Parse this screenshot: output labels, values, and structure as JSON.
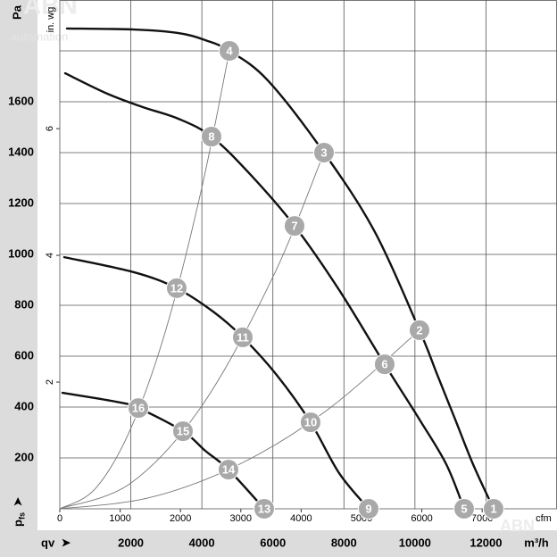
{
  "chart_data": {
    "type": "line",
    "y_label": "Pa",
    "y2_label": "in. wg",
    "x_label": "m³/h",
    "x2_label": "cfm",
    "x_symbol": "qv",
    "y_symbol_main": "p",
    "y_symbol_sub": "fs",
    "watermarks": [
      "ABN",
      "automation"
    ],
    "xlim": [
      0,
      14000
    ],
    "xticks": [
      2000,
      4000,
      6000,
      8000,
      10000,
      12000
    ],
    "ylim": [
      0,
      2000
    ],
    "yticks": [
      200,
      400,
      600,
      800,
      1000,
      1200,
      1400,
      1600
    ],
    "ygrid": [
      200,
      400,
      600,
      800,
      1000,
      1200,
      1400,
      1600,
      1800
    ],
    "x2lim": [
      0,
      8240
    ],
    "x2ticks": [
      0,
      1000,
      2000,
      3000,
      4000,
      5000,
      6000,
      7000
    ],
    "y2lim": [
      0,
      8.03
    ],
    "y2ticks": [
      2,
      4,
      6
    ],
    "fan_color": "#111111",
    "system_color": "#777777",
    "point_color": "#a9a9a9",
    "fan_curves": [
      {
        "x": [
          201,
          2086,
          3343,
          4097,
          4775,
          5856,
          7439,
          8872,
          10128,
          10631,
          11134,
          11636,
          12214
        ],
        "values": [
          1888,
          1884,
          1870,
          1842,
          1800,
          1684,
          1400,
          1088,
          702,
          526,
          351,
          175,
          0
        ]
      },
      {
        "x": [
          151,
          1332,
          2337,
          3343,
          4272,
          5353,
          6610,
          7866,
          9148,
          10128,
          10882,
          11385
        ],
        "values": [
          1712,
          1632,
          1579,
          1533,
          1463,
          1316,
          1112,
          860,
          568,
          351,
          175,
          0
        ]
      },
      {
        "x": [
          126,
          2086,
          3292,
          4348,
          5152,
          6107,
          7062,
          7866,
          8696
        ],
        "values": [
          989,
          930,
          867,
          772,
          674,
          526,
          340,
          140,
          0
        ]
      },
      {
        "x": [
          75,
          1583,
          2212,
          3468,
          4097,
          4750,
          5755
        ],
        "values": [
          456,
          421,
          396,
          305,
          228,
          154,
          0
        ]
      }
    ],
    "system_curves": [
      {
        "x": [
          0,
          1000,
          2000,
          3000,
          4000,
          4775
        ],
        "values": [
          0,
          79,
          316,
          710,
          1263,
          1800
        ]
      },
      {
        "x": [
          0,
          2000,
          4000,
          6000,
          7439
        ],
        "values": [
          0,
          101,
          405,
          911,
          1400
        ]
      },
      {
        "x": [
          0,
          2500,
          5000,
          7500,
          10128
        ],
        "values": [
          0,
          43,
          171,
          385,
          702
        ]
      }
    ],
    "points": [
      {
        "label": "1",
        "x": 12214,
        "y": 0
      },
      {
        "label": "2",
        "x": 10128,
        "y": 702
      },
      {
        "label": "3",
        "x": 7439,
        "y": 1400
      },
      {
        "label": "4",
        "x": 4775,
        "y": 1800
      },
      {
        "label": "5",
        "x": 11385,
        "y": 0
      },
      {
        "label": "6",
        "x": 9148,
        "y": 568
      },
      {
        "label": "7",
        "x": 6610,
        "y": 1112
      },
      {
        "label": "8",
        "x": 4272,
        "y": 1463
      },
      {
        "label": "9",
        "x": 8696,
        "y": 0
      },
      {
        "label": "10",
        "x": 7062,
        "y": 340
      },
      {
        "label": "11",
        "x": 5152,
        "y": 674
      },
      {
        "label": "12",
        "x": 3292,
        "y": 867
      },
      {
        "label": "13",
        "x": 5755,
        "y": 0
      },
      {
        "label": "14",
        "x": 4750,
        "y": 154
      },
      {
        "label": "15",
        "x": 3468,
        "y": 305
      },
      {
        "label": "16",
        "x": 2212,
        "y": 396
      }
    ]
  }
}
